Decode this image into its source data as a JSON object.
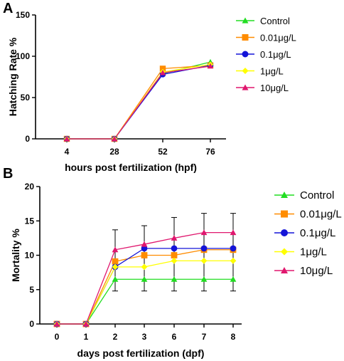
{
  "chart_data": [
    {
      "type": "line",
      "panel_label": "A",
      "xlabel": "hours post fertilization (hpf)",
      "ylabel": "Hatching Rate %",
      "categories": [
        "4",
        "28",
        "52",
        "76"
      ],
      "ylim": [
        0,
        150
      ],
      "yticks": [
        0,
        50,
        100,
        150
      ],
      "grid": false,
      "legend_position": "right",
      "series": [
        {
          "name": "Control",
          "color": "#22dd22",
          "marker": "triangle-up",
          "values": [
            0,
            0,
            79,
            93
          ]
        },
        {
          "name": "0.01μg/L",
          "color": "#ff8c00",
          "marker": "square",
          "values": [
            0,
            0,
            85,
            89
          ]
        },
        {
          "name": "0.1μg/L",
          "color": "#1414d8",
          "marker": "circle",
          "values": [
            0,
            0,
            78,
            89
          ]
        },
        {
          "name": "1μg/L",
          "color": "#ffff00",
          "marker": "diamond",
          "values": [
            0,
            0,
            81,
            90
          ]
        },
        {
          "name": "10μg/L",
          "color": "#e0176e",
          "marker": "triangle-up",
          "values": [
            0,
            0,
            80,
            88
          ]
        }
      ]
    },
    {
      "type": "line",
      "panel_label": "B",
      "xlabel": "days post fertilization (dpf)",
      "ylabel": "Mortality %",
      "categories": [
        "0",
        "1",
        "2",
        "3",
        "6",
        "7",
        "8"
      ],
      "ylim": [
        0,
        20
      ],
      "yticks": [
        0,
        5,
        10,
        15,
        20
      ],
      "grid": false,
      "legend_position": "right",
      "series": [
        {
          "name": "Control",
          "color": "#22dd22",
          "marker": "triangle-up",
          "values": [
            0,
            0,
            6.5,
            6.5,
            6.5,
            6.5,
            6.5
          ]
        },
        {
          "name": "0.01μg/L",
          "color": "#ff8c00",
          "marker": "square",
          "values": [
            0,
            0,
            9.1,
            10,
            10,
            10.8,
            10.8
          ]
        },
        {
          "name": "0.1μg/L",
          "color": "#1414d8",
          "marker": "circle",
          "values": [
            0,
            0,
            8.3,
            11,
            11,
            11,
            11
          ]
        },
        {
          "name": "1μg/L",
          "color": "#ffff00",
          "marker": "diamond",
          "values": [
            0,
            0,
            8.3,
            8.3,
            9.2,
            9.2,
            9.2
          ]
        },
        {
          "name": "10μg/L",
          "color": "#e0176e",
          "marker": "triangle-up",
          "values": [
            0,
            0,
            10.8,
            11.6,
            12.5,
            13.3,
            13.3
          ]
        }
      ],
      "error_bars": {
        "categories": [
          "2",
          "3",
          "6",
          "7",
          "8"
        ],
        "high": [
          13.7,
          14.3,
          15.5,
          16.1,
          16.1
        ],
        "low": [
          4.8,
          4.8,
          4.8,
          4.8,
          4.8
        ]
      }
    }
  ]
}
